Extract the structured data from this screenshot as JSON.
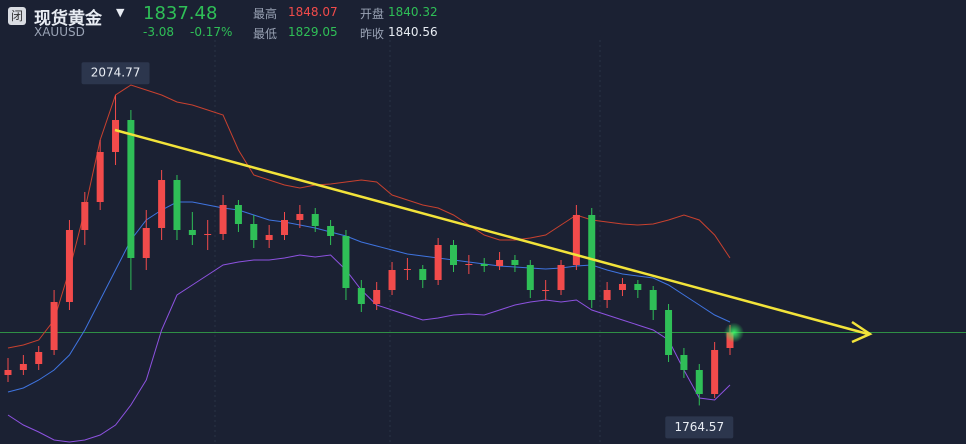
{
  "header": {
    "name": "现货黄金",
    "symbol": "XAUUSD",
    "icon": "闭",
    "price": 1837.48,
    "change": -3.08,
    "change_pct": "-0.17%",
    "stats": [
      {
        "label": "最高",
        "value": 1848.07
      },
      {
        "label": "开盘",
        "value": 1840.32
      },
      {
        "label": "最低",
        "value": 1829.05
      },
      {
        "label": "昨收",
        "value": 1840.56
      }
    ]
  },
  "chart_data": {
    "type": "candlestick",
    "ylim": [
      1726,
      2170
    ],
    "up_color": "#f24b4b",
    "down_color": "#2fbf57",
    "price_line": 1837.48,
    "candles": [
      [
        1795,
        1812,
        1788,
        1800
      ],
      [
        1800,
        1815,
        1795,
        1806
      ],
      [
        1806,
        1824,
        1800,
        1818
      ],
      [
        1820,
        1880,
        1815,
        1868
      ],
      [
        1868,
        1950,
        1860,
        1940
      ],
      [
        1940,
        1978,
        1925,
        1968
      ],
      [
        1968,
        2030,
        1960,
        2018
      ],
      [
        2018,
        2074.77,
        2005,
        2050
      ],
      [
        2050,
        2060,
        1880,
        1912
      ],
      [
        1912,
        1960,
        1900,
        1942
      ],
      [
        1942,
        2000,
        1930,
        1990
      ],
      [
        1990,
        1995,
        1930,
        1940
      ],
      [
        1940,
        1958,
        1925,
        1935
      ],
      [
        1935,
        1950,
        1920,
        1936
      ],
      [
        1936,
        1975,
        1930,
        1965
      ],
      [
        1965,
        1970,
        1938,
        1946
      ],
      [
        1946,
        1955,
        1922,
        1930
      ],
      [
        1930,
        1945,
        1922,
        1935
      ],
      [
        1935,
        1958,
        1930,
        1950
      ],
      [
        1950,
        1965,
        1942,
        1956
      ],
      [
        1956,
        1962,
        1938,
        1944
      ],
      [
        1944,
        1950,
        1925,
        1934
      ],
      [
        1934,
        1940,
        1870,
        1882
      ],
      [
        1882,
        1890,
        1858,
        1866
      ],
      [
        1866,
        1888,
        1860,
        1880
      ],
      [
        1880,
        1908,
        1875,
        1900
      ],
      [
        1900,
        1912,
        1890,
        1901
      ],
      [
        1901,
        1905,
        1882,
        1890
      ],
      [
        1890,
        1932,
        1885,
        1925
      ],
      [
        1925,
        1930,
        1898,
        1905
      ],
      [
        1905,
        1915,
        1896,
        1906
      ],
      [
        1906,
        1912,
        1898,
        1904
      ],
      [
        1904,
        1918,
        1900,
        1910
      ],
      [
        1910,
        1915,
        1898,
        1905
      ],
      [
        1905,
        1910,
        1872,
        1880
      ],
      [
        1880,
        1890,
        1870,
        1880
      ],
      [
        1880,
        1910,
        1875,
        1905
      ],
      [
        1905,
        1965,
        1900,
        1955
      ],
      [
        1955,
        1962,
        1862,
        1870
      ],
      [
        1870,
        1888,
        1862,
        1880
      ],
      [
        1880,
        1892,
        1874,
        1886
      ],
      [
        1886,
        1890,
        1872,
        1880
      ],
      [
        1880,
        1884,
        1850,
        1860
      ],
      [
        1860,
        1866,
        1808,
        1815
      ],
      [
        1815,
        1822,
        1792,
        1800
      ],
      [
        1800,
        1806,
        1764.57,
        1776
      ],
      [
        1776,
        1828,
        1772,
        1820
      ],
      [
        1822,
        1845,
        1815,
        1837.48
      ]
    ],
    "lines": [
      {
        "color": "#c8412f",
        "values": [
          1822,
          1825,
          1830,
          1850,
          1900,
          1960,
          2030,
          2075,
          2085,
          2080,
          2075,
          2068,
          2065,
          2060,
          2055,
          2020,
          1995,
          1990,
          1985,
          1982,
          1985,
          1986,
          1988,
          1990,
          1988,
          1975,
          1970,
          1965,
          1962,
          1955,
          1945,
          1935,
          1930,
          1930,
          1932,
          1935,
          1945,
          1955,
          1950,
          1948,
          1946,
          1945,
          1946,
          1950,
          1955,
          1950,
          1935,
          1912
        ]
      },
      {
        "color": "#3f74e0",
        "values": [
          1778,
          1782,
          1790,
          1800,
          1815,
          1840,
          1870,
          1900,
          1930,
          1950,
          1960,
          1968,
          1968,
          1965,
          1962,
          1960,
          1955,
          1950,
          1948,
          1945,
          1942,
          1938,
          1934,
          1928,
          1924,
          1920,
          1916,
          1914,
          1912,
          1910,
          1908,
          1906,
          1904,
          1903,
          1902,
          1901,
          1902,
          1904,
          1905,
          1900,
          1896,
          1894,
          1892,
          1885,
          1875,
          1865,
          1855,
          1848
        ]
      },
      {
        "color": "#8d52e0",
        "values": [
          1755,
          1745,
          1738,
          1730,
          1728,
          1730,
          1735,
          1745,
          1765,
          1790,
          1840,
          1875,
          1885,
          1895,
          1905,
          1908,
          1910,
          1910,
          1912,
          1915,
          1913,
          1915,
          1900,
          1880,
          1865,
          1860,
          1855,
          1850,
          1852,
          1855,
          1856,
          1855,
          1860,
          1865,
          1868,
          1870,
          1868,
          1870,
          1860,
          1855,
          1850,
          1845,
          1840,
          1830,
          1800,
          1772,
          1770,
          1785
        ]
      }
    ]
  }
}
